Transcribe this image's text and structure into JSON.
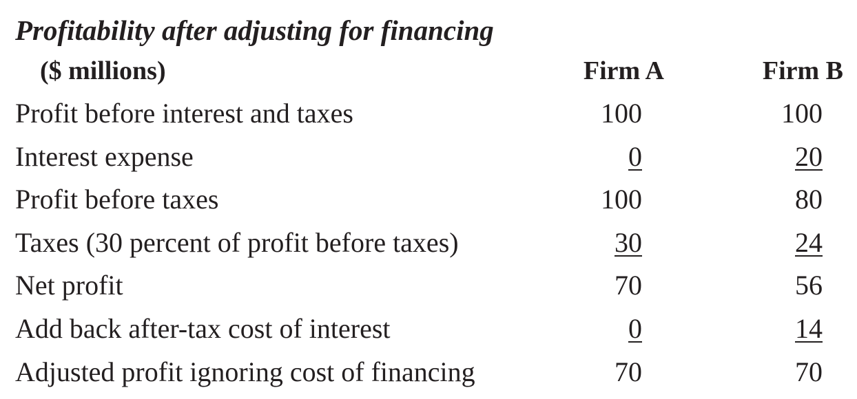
{
  "title": "Profitability after adjusting for financing",
  "header": {
    "unit_label": "($ millions)",
    "col_a": "Firm A",
    "col_b": "Firm B"
  },
  "rows": [
    {
      "label": "Profit before interest and taxes",
      "a": "100",
      "b": "100",
      "underline": false
    },
    {
      "label": "Interest expense",
      "a": "0",
      "b": "20",
      "underline": true
    },
    {
      "label": "Profit before taxes",
      "a": "100",
      "b": "80",
      "underline": false
    },
    {
      "label": "Taxes (30 percent of profit before taxes)",
      "a": "30",
      "b": "24",
      "underline": true
    },
    {
      "label": "Net profit",
      "a": "70",
      "b": "56",
      "underline": false
    },
    {
      "label": "Add back after-tax cost of interest",
      "a": "0",
      "b": "14",
      "underline": true
    },
    {
      "label": "Adjusted profit ignoring cost of financing",
      "a": "70",
      "b": "70",
      "underline": false
    }
  ]
}
